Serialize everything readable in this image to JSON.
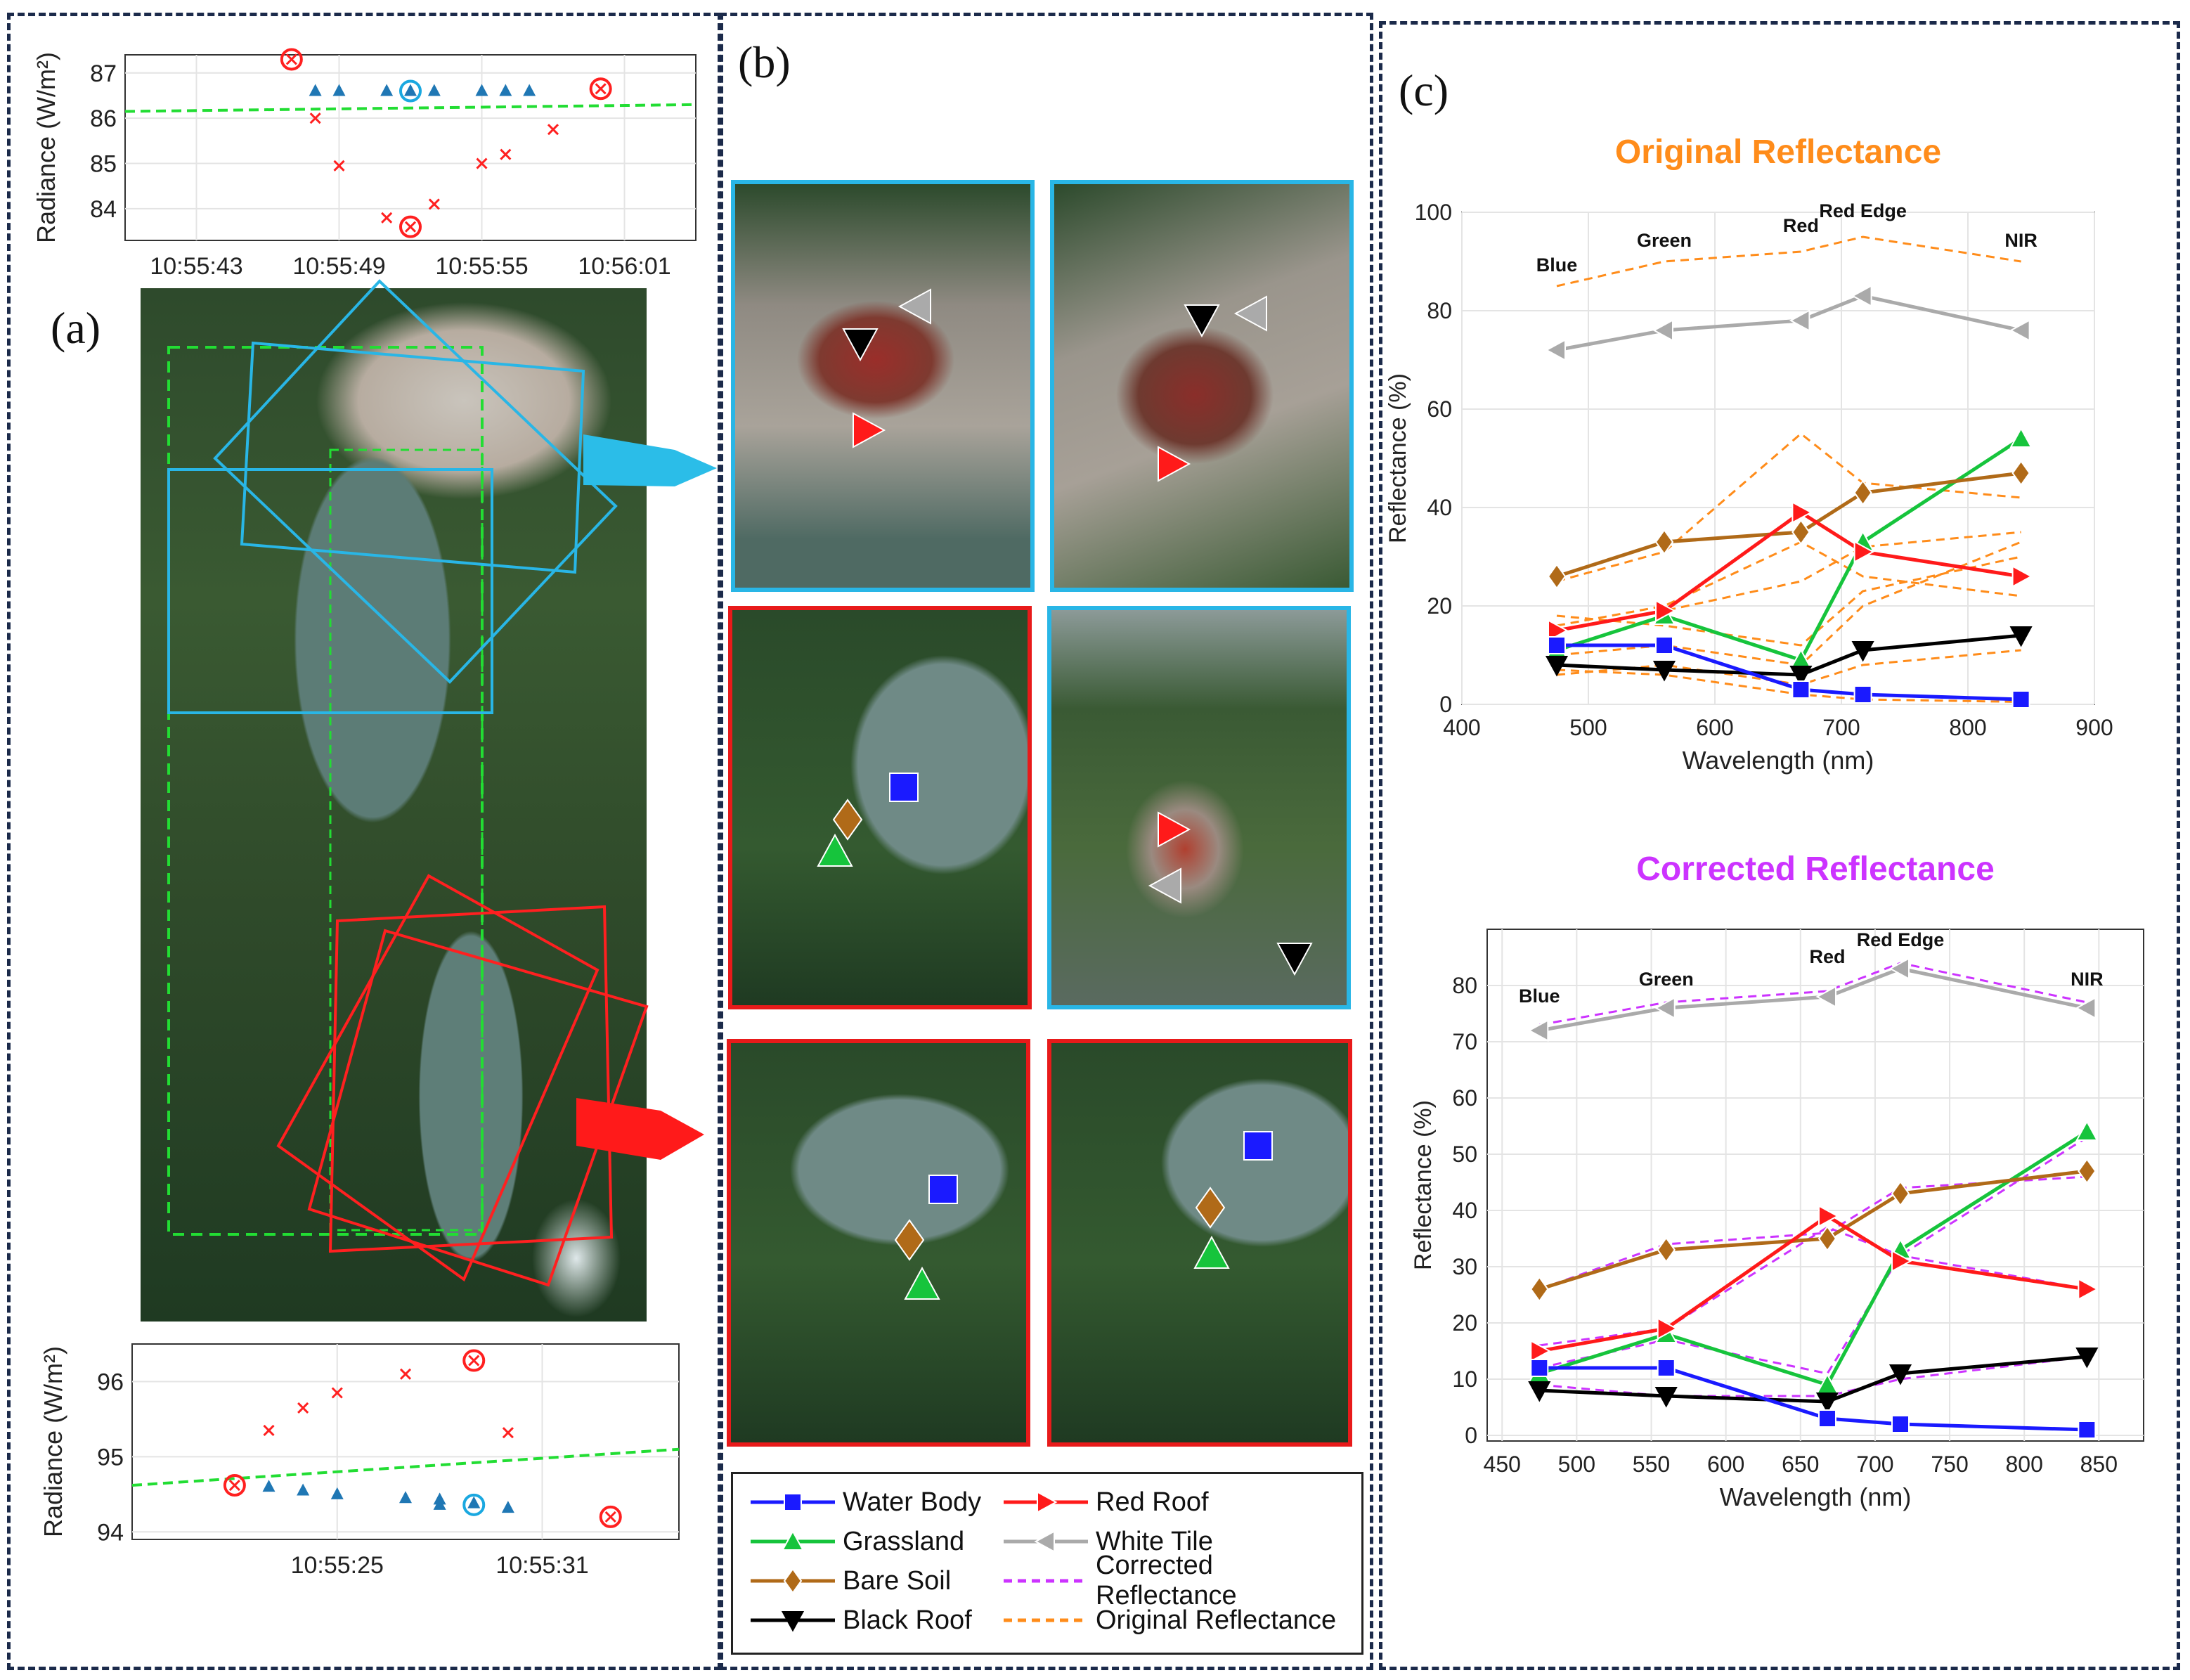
{
  "panels": {
    "a": "(a)",
    "b": "(b)",
    "c": "(c)"
  },
  "legend": [
    {
      "label": "Water Body",
      "color": "#1a1aff",
      "marker": "square",
      "dash": false
    },
    {
      "label": "Grassland",
      "color": "#16c43c",
      "marker": "triangle-up",
      "dash": false
    },
    {
      "label": "Bare Soil",
      "color": "#b06a18",
      "marker": "diamond",
      "dash": false
    },
    {
      "label": "Black Roof",
      "color": "#000000",
      "marker": "triangle-down",
      "dash": false
    },
    {
      "label": "Red Roof",
      "color": "#ff1a1a",
      "marker": "triangle-right",
      "dash": false
    },
    {
      "label": "White Tile",
      "color": "#aaaaaa",
      "marker": "triangle-left",
      "dash": false
    },
    {
      "label": "Corrected Reflectance",
      "color": "#cc33ff",
      "marker": "none",
      "dash": true
    },
    {
      "label": "Original Reflectance",
      "color": "#ff8c1a",
      "marker": "none",
      "dash": true
    }
  ],
  "chart_data": [
    {
      "id": "radiance_top",
      "type": "scatter",
      "ylabel": "Radiance (W/m²)",
      "ylim": [
        83.3,
        87.4
      ],
      "xlim": [
        "10:55:40",
        "10:56:04"
      ],
      "x_ticks": [
        "10:55:43",
        "10:55:49",
        "10:55:55",
        "10:56:01"
      ],
      "y_ticks": [
        "84",
        "85",
        "86",
        "87"
      ],
      "grid": true,
      "trend": {
        "x": [
          "10:55:40",
          "10:56:04"
        ],
        "y": [
          86.15,
          86.3
        ]
      },
      "series": [
        {
          "marker": "triangle",
          "color": "#1f77b4",
          "points": [
            [
              "10:55:48",
              86.6
            ],
            [
              "10:55:49",
              86.6
            ],
            [
              "10:55:51",
              86.6
            ],
            [
              "10:55:53",
              86.6
            ],
            [
              "10:55:55",
              86.6
            ],
            [
              "10:55:56",
              86.6
            ],
            [
              "10:55:57",
              86.6
            ],
            [
              "10:55:52",
              86.6
            ]
          ]
        },
        {
          "marker": "cross",
          "color": "#ff2020",
          "points": [
            [
              "10:55:48",
              86.0
            ],
            [
              "10:55:49",
              84.95
            ],
            [
              "10:55:51",
              83.8
            ],
            [
              "10:55:53",
              84.1
            ],
            [
              "10:55:55",
              85.0
            ],
            [
              "10:55:56",
              85.2
            ],
            [
              "10:55:58",
              85.75
            ],
            [
              "10:55:52",
              83.6
            ],
            [
              "10:55:47",
              87.3
            ],
            [
              "10:56:00",
              86.65
            ]
          ]
        }
      ],
      "circled": [
        [
          "10:55:47",
          87.3,
          "red"
        ],
        [
          "10:55:52",
          83.6,
          "red"
        ],
        [
          "10:56:00",
          86.65,
          "red"
        ],
        [
          "10:55:52",
          86.6,
          "blue"
        ]
      ]
    },
    {
      "id": "radiance_bottom",
      "type": "scatter",
      "ylabel": "Radiance (W/m²)",
      "ylim": [
        93.9,
        96.5
      ],
      "xlim": [
        "10:55:19",
        "10:55:35"
      ],
      "x_ticks": [
        "10:55:25",
        "10:55:31"
      ],
      "y_ticks": [
        "94",
        "95",
        "96"
      ],
      "grid": true,
      "trend": {
        "x": [
          "10:55:19",
          "10:55:35"
        ],
        "y": [
          94.62,
          95.1
        ]
      },
      "series": [
        {
          "marker": "triangle",
          "color": "#1f77b4",
          "points": [
            [
              "10:55:23",
              94.6
            ],
            [
              "10:55:24",
              94.55
            ],
            [
              "10:55:25",
              94.5
            ],
            [
              "10:55:27",
              94.45
            ],
            [
              "10:55:28",
              94.43
            ],
            [
              "10:55:29",
              94.38
            ],
            [
              "10:55:30",
              94.32
            ],
            [
              "10:55:28",
              94.36
            ]
          ]
        },
        {
          "marker": "cross",
          "color": "#ff2020",
          "points": [
            [
              "10:55:23",
              95.35
            ],
            [
              "10:55:24",
              95.65
            ],
            [
              "10:55:25",
              95.85
            ],
            [
              "10:55:27",
              96.1
            ],
            [
              "10:55:29",
              96.28
            ],
            [
              "10:55:30",
              95.32
            ],
            [
              "10:55:22",
              94.62
            ],
            [
              "10:55:33",
              94.2
            ]
          ]
        }
      ],
      "circled": [
        [
          "10:55:22",
          94.62,
          "red"
        ],
        [
          "10:55:29",
          96.28,
          "red"
        ],
        [
          "10:55:33",
          94.2,
          "red"
        ],
        [
          "10:55:29",
          94.36,
          "blue"
        ]
      ]
    },
    {
      "id": "original_reflectance",
      "type": "line",
      "title": "Original Reflectance",
      "title_color": "#ff8c1a",
      "xlabel": "Wavelength (nm)",
      "ylabel": "Reflectance (%)",
      "xlim": [
        400,
        900
      ],
      "ylim": [
        0,
        100
      ],
      "x_ticks": [
        400,
        500,
        600,
        700,
        800,
        900
      ],
      "y_ticks": [
        0,
        20,
        40,
        60,
        80,
        100
      ],
      "grid": true,
      "band_labels": [
        {
          "text": "Blue",
          "x": 475,
          "y": 88
        },
        {
          "text": "Green",
          "x": 560,
          "y": 93
        },
        {
          "text": "Red",
          "x": 668,
          "y": 96
        },
        {
          "text": "Red Edge",
          "x": 717,
          "y": 99
        },
        {
          "text": "NIR",
          "x": 842,
          "y": 93
        }
      ],
      "x": [
        475,
        560,
        668,
        717,
        842
      ],
      "series": [
        {
          "name": "White Tile",
          "values": [
            72,
            76,
            78,
            83,
            76
          ]
        },
        {
          "name": "Grassland",
          "values": [
            11,
            18,
            9,
            33,
            54
          ]
        },
        {
          "name": "Bare Soil",
          "values": [
            26,
            33,
            35,
            43,
            47
          ]
        },
        {
          "name": "Red Roof",
          "values": [
            15,
            19,
            39,
            31,
            26
          ]
        },
        {
          "name": "Black Roof",
          "values": [
            8,
            7,
            6,
            11,
            14
          ]
        },
        {
          "name": "Water Body",
          "values": [
            12,
            12,
            3,
            2,
            1
          ]
        }
      ],
      "dashed_series": [
        {
          "name": "Original Reflectance",
          "values": [
            85,
            90,
            92,
            95,
            90
          ]
        },
        {
          "name": "Original Reflectance",
          "values": [
            25,
            31,
            55,
            45,
            42
          ]
        },
        {
          "name": "Original Reflectance",
          "values": [
            15,
            19,
            25,
            32,
            35
          ]
        },
        {
          "name": "Original Reflectance",
          "values": [
            18,
            16,
            12,
            23,
            30
          ]
        },
        {
          "name": "Original Reflectance",
          "values": [
            16,
            20,
            33,
            26,
            22
          ]
        },
        {
          "name": "Original Reflectance",
          "values": [
            10,
            12,
            8,
            20,
            33
          ]
        },
        {
          "name": "Original Reflectance",
          "values": [
            6,
            8,
            4,
            8,
            11
          ]
        },
        {
          "name": "Original Reflectance",
          "values": [
            7,
            6,
            2,
            1,
            0.5
          ]
        }
      ]
    },
    {
      "id": "corrected_reflectance",
      "type": "line",
      "title": "Corrected Reflectance",
      "title_color": "#cc33ff",
      "xlabel": "Wavelength (nm)",
      "ylabel": "Reflectance (%)",
      "xlim": [
        440,
        880
      ],
      "ylim": [
        -1,
        90
      ],
      "x_ticks": [
        450,
        500,
        550,
        600,
        650,
        700,
        750,
        800,
        850
      ],
      "y_ticks": [
        0,
        10,
        20,
        30,
        40,
        50,
        60,
        70,
        80
      ],
      "grid": true,
      "band_labels": [
        {
          "text": "Blue",
          "x": 475,
          "y": 77
        },
        {
          "text": "Green",
          "x": 560,
          "y": 80
        },
        {
          "text": "Red",
          "x": 668,
          "y": 84
        },
        {
          "text": "Red Edge",
          "x": 717,
          "y": 87
        },
        {
          "text": "NIR",
          "x": 842,
          "y": 80
        }
      ],
      "x": [
        475,
        560,
        668,
        717,
        842
      ],
      "series": [
        {
          "name": "White Tile",
          "values": [
            72,
            76,
            78,
            83,
            76
          ]
        },
        {
          "name": "Grassland",
          "values": [
            11,
            18,
            9,
            33,
            54
          ]
        },
        {
          "name": "Bare Soil",
          "values": [
            26,
            33,
            35,
            43,
            47
          ]
        },
        {
          "name": "Red Roof",
          "values": [
            15,
            19,
            39,
            31,
            26
          ]
        },
        {
          "name": "Black Roof",
          "values": [
            8,
            7,
            6,
            11,
            14
          ]
        },
        {
          "name": "Water Body",
          "values": [
            12,
            12,
            3,
            2,
            1
          ]
        }
      ],
      "dashed_series": [
        {
          "name": "Corrected Reflectance",
          "values": [
            73,
            77,
            79,
            84,
            77
          ]
        },
        {
          "name": "Corrected Reflectance",
          "values": [
            12,
            17,
            11,
            32,
            53
          ]
        },
        {
          "name": "Corrected Reflectance",
          "values": [
            26,
            34,
            36,
            44,
            46
          ]
        },
        {
          "name": "Corrected Reflectance",
          "values": [
            16,
            19,
            37,
            32,
            26
          ]
        },
        {
          "name": "Corrected Reflectance",
          "values": [
            9,
            7,
            7,
            10,
            14
          ]
        },
        {
          "name": "Corrected Reflectance",
          "values": [
            12,
            12,
            3,
            2,
            1
          ]
        }
      ]
    }
  ],
  "series_style": {
    "White Tile": {
      "color": "#aaaaaa",
      "marker": "triangle-left"
    },
    "Grassland": {
      "color": "#16c43c",
      "marker": "triangle-up"
    },
    "Bare Soil": {
      "color": "#b06a18",
      "marker": "diamond"
    },
    "Red Roof": {
      "color": "#ff1a1a",
      "marker": "triangle-right"
    },
    "Black Roof": {
      "color": "#000000",
      "marker": "triangle-down"
    },
    "Water Body": {
      "color": "#1a1aff",
      "marker": "square"
    }
  }
}
